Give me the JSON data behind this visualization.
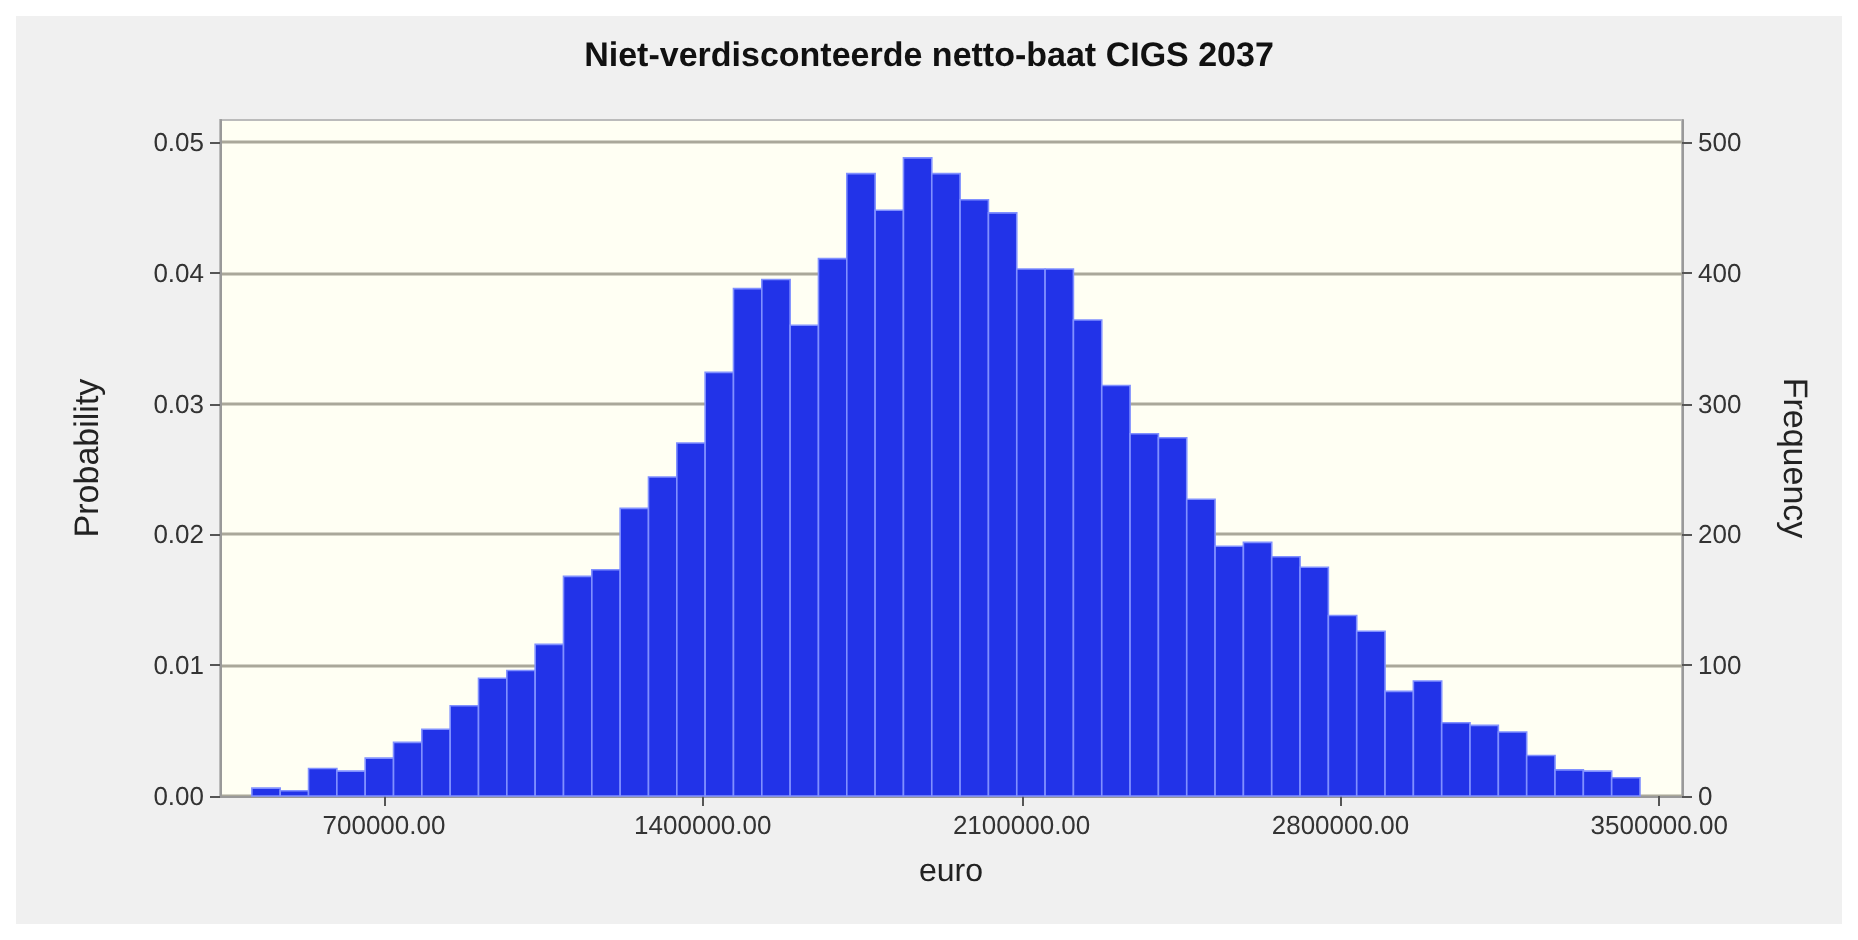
{
  "chart_data": {
    "type": "histogram",
    "title": "Niet-verdisconteerde netto-baat CIGS 2037",
    "xlabel": "euro",
    "ylabel": "Probability",
    "y2label": "Frequency",
    "bins": [
      410000,
      472200,
      534400,
      596600,
      658800,
      721000,
      783200,
      845400,
      907600,
      969800,
      1032000,
      1094200,
      1156400,
      1218600,
      1280800,
      1343000,
      1405200,
      1467400,
      1529600,
      1591800,
      1654000,
      1716200,
      1778400,
      1840600,
      1902800,
      1965000,
      2027200,
      2089400,
      2151600,
      2213800,
      2276000,
      2338200,
      2400400,
      2462600,
      2524800,
      2587000,
      2649200,
      2711400,
      2773600,
      2835800,
      2898000,
      2960200,
      3022400,
      3084600,
      3146800,
      3209000,
      3271200,
      3333400,
      3395600,
      3457800
    ],
    "values": [
      0.0006,
      0.0004,
      0.0021,
      0.0019,
      0.0029,
      0.0041,
      0.0051,
      0.0069,
      0.009,
      0.0096,
      0.0116,
      0.0168,
      0.0173,
      0.022,
      0.0244,
      0.027,
      0.0324,
      0.0388,
      0.0395,
      0.036,
      0.0411,
      0.0476,
      0.0448,
      0.0488,
      0.0476,
      0.0456,
      0.0446,
      0.0403,
      0.0403,
      0.0364,
      0.0314,
      0.0277,
      0.0274,
      0.0227,
      0.0191,
      0.0194,
      0.0183,
      0.0175,
      0.0138,
      0.0126,
      0.008,
      0.0088,
      0.0056,
      0.0054,
      0.0049,
      0.0031,
      0.002,
      0.0019,
      0.0014
    ],
    "color": "#2233e8",
    "xlim": [
      340000,
      3550000
    ],
    "xticks": [
      {
        "value": 700000,
        "label": "700000.00"
      },
      {
        "value": 1400000,
        "label": "1400000.00"
      },
      {
        "value": 2100000,
        "label": "2100000.00"
      },
      {
        "value": 2800000,
        "label": "2800000.00"
      },
      {
        "value": 3500000,
        "label": "3500000.00"
      }
    ],
    "ylim": [
      0,
      0.0517
    ],
    "yticks": [
      {
        "value": 0,
        "label": "0.00"
      },
      {
        "value": 0.01,
        "label": "0.01"
      },
      {
        "value": 0.02,
        "label": "0.02"
      },
      {
        "value": 0.03,
        "label": "0.03"
      },
      {
        "value": 0.04,
        "label": "0.04"
      },
      {
        "value": 0.05,
        "label": "0.05"
      }
    ],
    "y2lim": [
      0,
      517
    ],
    "y2ticks": [
      0,
      100,
      200,
      300,
      400,
      500
    ],
    "grid": "y"
  }
}
